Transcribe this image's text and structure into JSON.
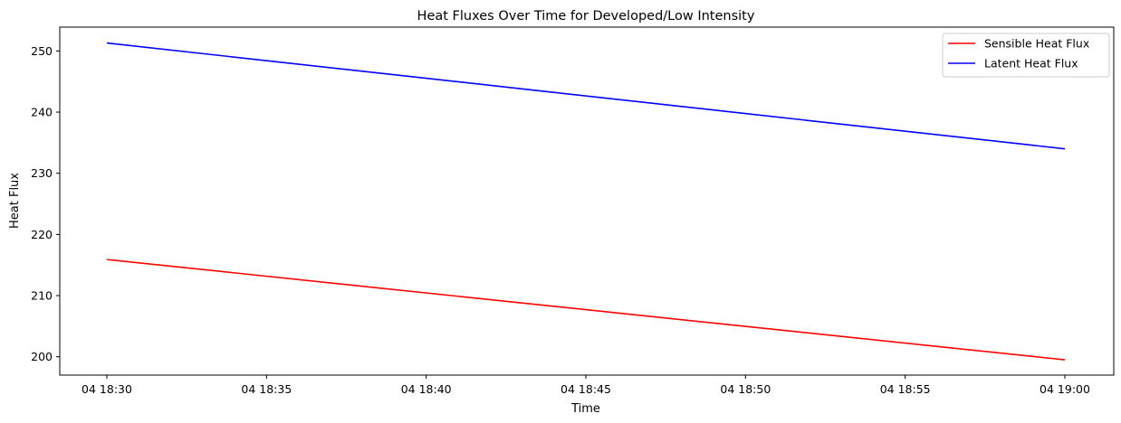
{
  "chart_data": {
    "type": "line",
    "title": "Heat Fluxes Over Time for Developed/Low Intensity",
    "xlabel": "Time",
    "ylabel": "Heat Flux",
    "x": [
      "04 18:30",
      "04 19:00"
    ],
    "xticks": [
      "04 18:30",
      "04 18:35",
      "04 18:40",
      "04 18:45",
      "04 18:50",
      "04 18:55",
      "04 19:00"
    ],
    "yticks": [
      200,
      210,
      220,
      230,
      240,
      250
    ],
    "ylim": [
      197,
      253.9
    ],
    "grid": false,
    "legend_position": "top-right",
    "series": [
      {
        "name": "Sensible Heat Flux",
        "color": "#ff0000",
        "values": [
          215.9,
          199.5
        ]
      },
      {
        "name": "Latent Heat Flux",
        "color": "#0000ff",
        "values": [
          251.3,
          234.0
        ]
      }
    ]
  }
}
